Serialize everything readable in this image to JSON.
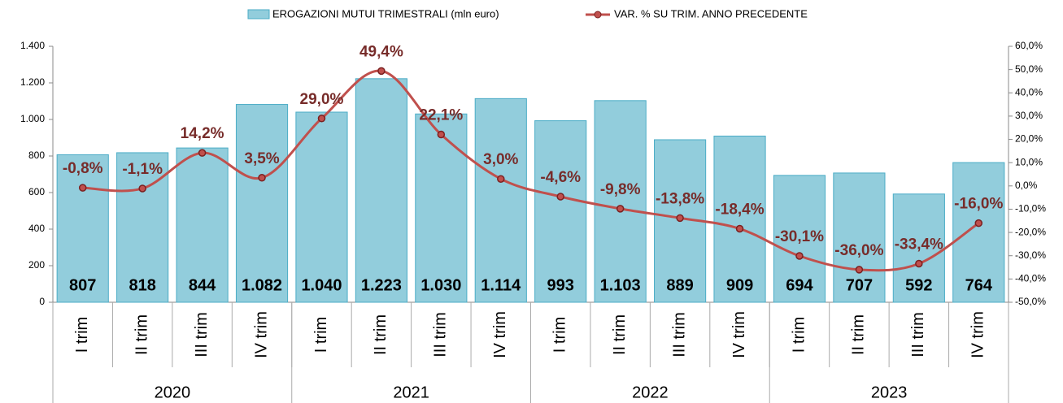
{
  "chart_data": {
    "type": "bar-line",
    "categories": [
      "I trim",
      "II trim",
      "III trim",
      "IV trim",
      "I trim",
      "II trim",
      "III trim",
      "IV trim",
      "I trim",
      "II trim",
      "III trim",
      "IV trim",
      "I trim",
      "II trim",
      "III trim",
      "IV trim"
    ],
    "x_groups": [
      "2020",
      "2021",
      "2022",
      "2023"
    ],
    "series": [
      {
        "name": "EROGAZIONI MUTUI TRIMESTRALI (mln euro)",
        "type": "bar",
        "color": "#92cddc",
        "values": [
          807,
          818,
          844,
          1082,
          1040,
          1223,
          1030,
          1114,
          993,
          1103,
          889,
          909,
          694,
          707,
          592,
          764
        ],
        "value_labels": [
          "807",
          "818",
          "844",
          "1.082",
          "1.040",
          "1.223",
          "1.030",
          "1.114",
          "993",
          "1.103",
          "889",
          "909",
          "694",
          "707",
          "592",
          "764"
        ]
      },
      {
        "name": "VAR. % SU TRIM. ANNO PRECEDENTE",
        "type": "line",
        "axis": "y2",
        "color": "#c0504d",
        "values": [
          -0.8,
          -1.1,
          14.2,
          3.5,
          29.0,
          49.4,
          22.1,
          3.0,
          -4.6,
          -9.8,
          -13.8,
          -18.4,
          -30.1,
          -36.0,
          -33.4,
          -16.0
        ],
        "value_labels": [
          "-0,8%",
          "-1,1%",
          "14,2%",
          "3,5%",
          "29,0%",
          "49,4%",
          "22,1%",
          "3,0%",
          "-4,6%",
          "-9,8%",
          "-13,8%",
          "-18,4%",
          "-30,1%",
          "-36,0%",
          "-33,4%",
          "-16,0%"
        ]
      }
    ],
    "ylim": [
      0,
      1400
    ],
    "yticks": [
      0,
      200,
      400,
      600,
      800,
      {
        "value": 1000,
        "label": "1.000"
      },
      {
        "value": 1200,
        "label": "1.200"
      },
      {
        "value": 1400,
        "label": "1.400"
      }
    ],
    "y2lim": [
      -50,
      60
    ],
    "y2ticks": [
      {
        "value": -50,
        "label": "-50,0%"
      },
      {
        "value": -40,
        "label": "-40,0%"
      },
      {
        "value": -30,
        "label": "-30,0%"
      },
      {
        "value": -20,
        "label": "-20,0%"
      },
      {
        "value": -10,
        "label": "-10,0%"
      },
      {
        "value": 0,
        "label": "0,0%"
      },
      {
        "value": 10,
        "label": "10,0%"
      },
      {
        "value": 20,
        "label": "20,0%"
      },
      {
        "value": 30,
        "label": "30,0%"
      },
      {
        "value": 40,
        "label": "40,0%"
      },
      {
        "value": 50,
        "label": "50,0%"
      },
      {
        "value": 60,
        "label": "60,0%"
      }
    ],
    "legend": "top"
  }
}
